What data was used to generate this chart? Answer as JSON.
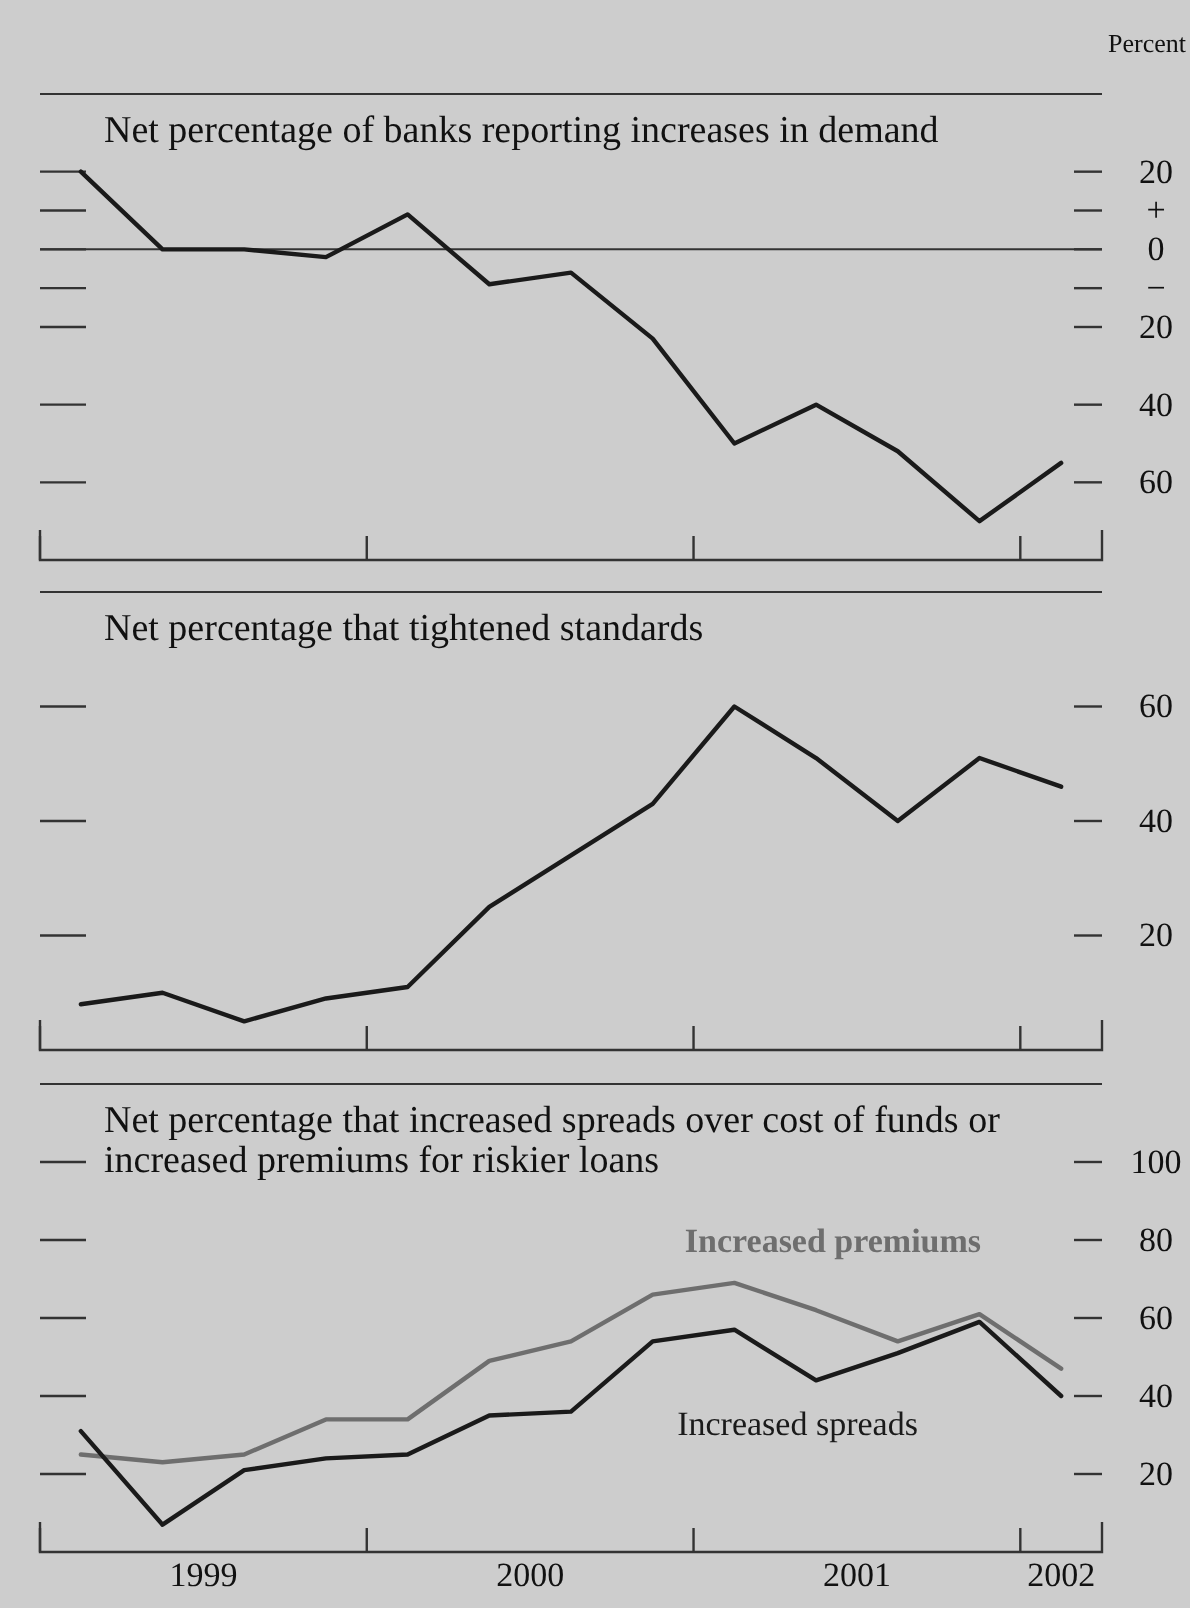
{
  "chart_data": [
    {
      "type": "line",
      "title": "Net percentage of banks reporting increases in demand",
      "ylabel": "Percent",
      "x": [
        1999.125,
        1999.375,
        1999.625,
        1999.875,
        2000.125,
        2000.375,
        2000.625,
        2000.875,
        2001.125,
        2001.375,
        2001.625,
        2001.875,
        2002.125
      ],
      "xlim": [
        1999,
        2002.25
      ],
      "xticks": [
        {
          "value": 1999,
          "label": null
        },
        {
          "value": 2000,
          "label": null
        },
        {
          "value": 2001,
          "label": null
        },
        {
          "value": 2002,
          "label": null
        }
      ],
      "ylim": [
        -80,
        40
      ],
      "yticks": [
        {
          "value": 20,
          "label": "20"
        },
        {
          "value": 10,
          "label": "+"
        },
        {
          "value": 0,
          "label": "0"
        },
        {
          "value": -10,
          "label": "−"
        },
        {
          "value": -20,
          "label": "20"
        },
        {
          "value": -40,
          "label": "40"
        },
        {
          "value": -60,
          "label": "60"
        }
      ],
      "tick_labels": "y",
      "ref_lines": [
        {
          "axis": "y",
          "value": 0
        }
      ],
      "series": [
        {
          "color": "#1a1a1a",
          "values": [
            20,
            0,
            0,
            -2,
            9,
            -9,
            -6,
            -23,
            -50,
            -40,
            -52,
            -70,
            -55
          ]
        }
      ]
    },
    {
      "type": "line",
      "title": "Net percentage that tightened standards",
      "x": [
        1999.125,
        1999.375,
        1999.625,
        1999.875,
        2000.125,
        2000.375,
        2000.625,
        2000.875,
        2001.125,
        2001.375,
        2001.625,
        2001.875,
        2002.125
      ],
      "xlim": [
        1999,
        2002.25
      ],
      "xticks": [
        {
          "value": 1999,
          "label": null
        },
        {
          "value": 2000,
          "label": null
        },
        {
          "value": 2001,
          "label": null
        },
        {
          "value": 2002,
          "label": null
        }
      ],
      "ylim": [
        0,
        80
      ],
      "yticks": [
        20,
        40,
        60
      ],
      "tick_labels": "y",
      "series": [
        {
          "color": "#1a1a1a",
          "values": [
            8,
            10,
            5,
            9,
            11,
            25,
            34,
            43,
            60,
            51,
            40,
            51,
            46
          ]
        }
      ]
    },
    {
      "type": "line",
      "title": "Net percentage that increased spreads over cost of funds or increased premiums for riskier loans",
      "x": [
        1999.125,
        1999.375,
        1999.625,
        1999.875,
        2000.125,
        2000.375,
        2000.625,
        2000.875,
        2001.125,
        2001.375,
        2001.625,
        2001.875,
        2002.125
      ],
      "xlim": [
        1999,
        2002.25
      ],
      "xticks": [
        {
          "value": 1999,
          "label": null
        },
        {
          "value": 1999.5,
          "label": "1999"
        },
        {
          "value": 2000,
          "label": null
        },
        {
          "value": 2000.5,
          "label": "2000"
        },
        {
          "value": 2001,
          "label": null
        },
        {
          "value": 2001.5,
          "label": "2001"
        },
        {
          "value": 2002,
          "label": null
        },
        {
          "value": 2002.125,
          "label": "2002"
        }
      ],
      "ylim": [
        0,
        120
      ],
      "yticks": [
        20,
        40,
        60,
        80,
        100
      ],
      "series": [
        {
          "name": "Increased premiums",
          "color": "#6e6e6e",
          "values": [
            25,
            23,
            25,
            34,
            34,
            49,
            54,
            66,
            69,
            62,
            54,
            61,
            47
          ]
        },
        {
          "name": "Increased spreads",
          "color": "#1a1a1a",
          "values": [
            31,
            7,
            21,
            24,
            25,
            35,
            36,
            54,
            57,
            44,
            51,
            59,
            40
          ]
        }
      ]
    }
  ]
}
